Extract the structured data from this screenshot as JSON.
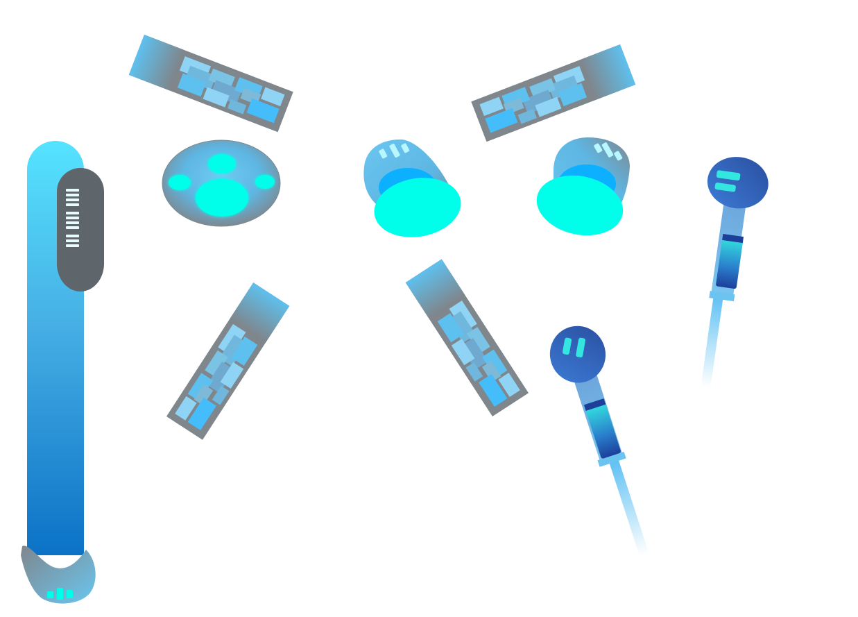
{
  "sprite_sheet": {
    "parts": [
      {
        "name": "limb-bar"
      },
      {
        "name": "circuit-arm-top-left"
      },
      {
        "name": "circuit-arm-top-right"
      },
      {
        "name": "core-body-front"
      },
      {
        "name": "shoulder-joint-left"
      },
      {
        "name": "shoulder-joint-right"
      },
      {
        "name": "circuit-arm-lower-left"
      },
      {
        "name": "circuit-arm-lower-right"
      },
      {
        "name": "probe-wand-upright"
      },
      {
        "name": "probe-wand-tilted"
      }
    ],
    "colors": {
      "sky_blue": "#5ec0ee",
      "cyan_glow": "#00ffea",
      "steel_grey": "#7f868c",
      "deep_blue": "#2a57ab",
      "dark_panel": "#5e656b",
      "bright_blue": "#0db0ff"
    }
  }
}
